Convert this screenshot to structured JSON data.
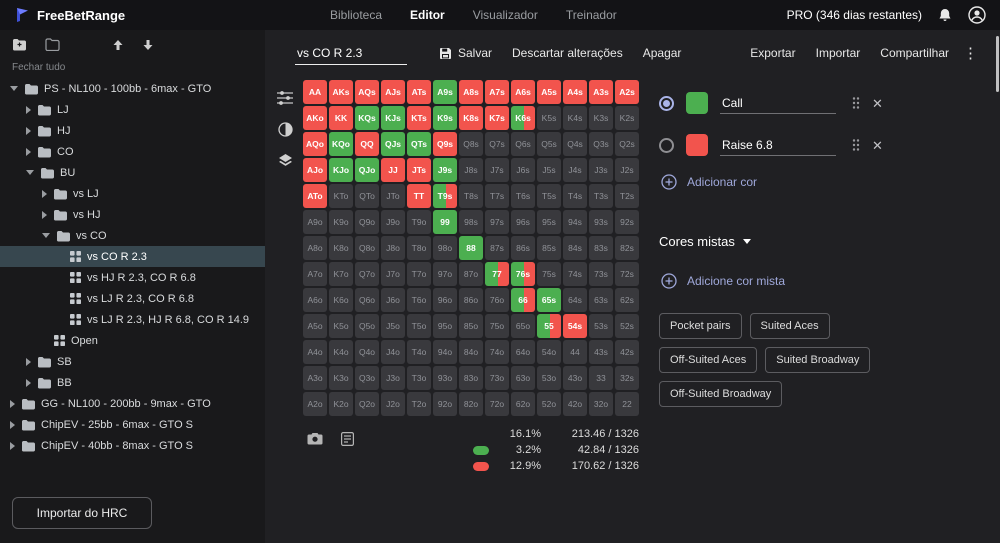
{
  "ui": {
    "accent": "#9fa8da"
  },
  "topbar": {
    "brand": "FreeBetRange",
    "nav": [
      {
        "label": "Biblioteca",
        "active": false
      },
      {
        "label": "Editor",
        "active": true
      },
      {
        "label": "Visualizador",
        "active": false
      },
      {
        "label": "Treinador",
        "active": false
      }
    ],
    "account_label": "PRO (346 dias restantes)"
  },
  "sidebar": {
    "close_all": "Fechar tudo",
    "import_button": "Importar do HRC",
    "tree": [
      {
        "label": "PS - NL100 - 100bb - 6max - GTO",
        "depth": 0,
        "type": "folder",
        "expanded": true
      },
      {
        "label": "LJ",
        "depth": 1,
        "type": "folder",
        "expanded": false
      },
      {
        "label": "HJ",
        "depth": 1,
        "type": "folder",
        "expanded": false
      },
      {
        "label": "CO",
        "depth": 1,
        "type": "folder",
        "expanded": false
      },
      {
        "label": "BU",
        "depth": 1,
        "type": "folder",
        "expanded": true
      },
      {
        "label": "vs LJ",
        "depth": 2,
        "type": "folder",
        "expanded": false
      },
      {
        "label": "vs HJ",
        "depth": 2,
        "type": "folder",
        "expanded": false
      },
      {
        "label": "vs CO",
        "depth": 2,
        "type": "folder",
        "expanded": true
      },
      {
        "label": "vs CO R 2.3",
        "depth": 3,
        "type": "range",
        "selected": true
      },
      {
        "label": "vs HJ R 2.3, CO R 6.8",
        "depth": 3,
        "type": "range"
      },
      {
        "label": "vs LJ R 2.3, CO R 6.8",
        "depth": 3,
        "type": "range"
      },
      {
        "label": "vs LJ R 2.3, HJ R 6.8, CO R 14.9",
        "depth": 3,
        "type": "range"
      },
      {
        "label": "Open",
        "depth": 2,
        "type": "range"
      },
      {
        "label": "SB",
        "depth": 1,
        "type": "folder",
        "expanded": false
      },
      {
        "label": "BB",
        "depth": 1,
        "type": "folder",
        "expanded": false
      },
      {
        "label": "GG - NL100 - 200bb - 9max - GTO",
        "depth": 0,
        "type": "folder",
        "expanded": false
      },
      {
        "label": "ChipEV - 25bb - 6max - GTO S",
        "depth": 0,
        "type": "folder",
        "expanded": false
      },
      {
        "label": "ChipEV - 40bb - 8max - GTO S",
        "depth": 0,
        "type": "folder",
        "expanded": false
      }
    ]
  },
  "editor": {
    "range_name": "vs CO R 2.3",
    "save_label": "Salvar",
    "discard_label": "Descartar alterações",
    "delete_label": "Apagar",
    "export_label": "Exportar",
    "import_label": "Importar",
    "share_label": "Compartilhar"
  },
  "grid": {
    "colors": {
      "raise": "#f2544d",
      "call": "#4caf50",
      "fold": "#39393d"
    },
    "states_legend": {
      "r": "raise",
      "c": "call",
      "m": "mixed",
      "f": "fold"
    },
    "cells": [
      [
        "AA",
        "r"
      ],
      [
        "AKs",
        "r"
      ],
      [
        "AQs",
        "r"
      ],
      [
        "AJs",
        "r"
      ],
      [
        "ATs",
        "r"
      ],
      [
        "A9s",
        "c"
      ],
      [
        "A8s",
        "r"
      ],
      [
        "A7s",
        "r"
      ],
      [
        "A6s",
        "r"
      ],
      [
        "A5s",
        "r"
      ],
      [
        "A4s",
        "r"
      ],
      [
        "A3s",
        "r"
      ],
      [
        "A2s",
        "r"
      ],
      [
        "AKo",
        "r"
      ],
      [
        "KK",
        "r"
      ],
      [
        "KQs",
        "c"
      ],
      [
        "KJs",
        "c"
      ],
      [
        "KTs",
        "r"
      ],
      [
        "K9s",
        "c"
      ],
      [
        "K8s",
        "r"
      ],
      [
        "K7s",
        "r"
      ],
      [
        "K6s",
        "m"
      ],
      [
        "K5s",
        "f"
      ],
      [
        "K4s",
        "f"
      ],
      [
        "K3s",
        "f"
      ],
      [
        "K2s",
        "f"
      ],
      [
        "AQo",
        "r"
      ],
      [
        "KQo",
        "c"
      ],
      [
        "QQ",
        "r"
      ],
      [
        "QJs",
        "c"
      ],
      [
        "QTs",
        "c"
      ],
      [
        "Q9s",
        "r"
      ],
      [
        "Q8s",
        "f"
      ],
      [
        "Q7s",
        "f"
      ],
      [
        "Q6s",
        "f"
      ],
      [
        "Q5s",
        "f"
      ],
      [
        "Q4s",
        "f"
      ],
      [
        "Q3s",
        "f"
      ],
      [
        "Q2s",
        "f"
      ],
      [
        "AJo",
        "r"
      ],
      [
        "KJo",
        "c"
      ],
      [
        "QJo",
        "c"
      ],
      [
        "JJ",
        "r"
      ],
      [
        "JTs",
        "r"
      ],
      [
        "J9s",
        "c"
      ],
      [
        "J8s",
        "f"
      ],
      [
        "J7s",
        "f"
      ],
      [
        "J6s",
        "f"
      ],
      [
        "J5s",
        "f"
      ],
      [
        "J4s",
        "f"
      ],
      [
        "J3s",
        "f"
      ],
      [
        "J2s",
        "f"
      ],
      [
        "ATo",
        "r"
      ],
      [
        "KTo",
        "f"
      ],
      [
        "QTo",
        "f"
      ],
      [
        "JTo",
        "f"
      ],
      [
        "TT",
        "r"
      ],
      [
        "T9s",
        "m"
      ],
      [
        "T8s",
        "f"
      ],
      [
        "T7s",
        "f"
      ],
      [
        "T6s",
        "f"
      ],
      [
        "T5s",
        "f"
      ],
      [
        "T4s",
        "f"
      ],
      [
        "T3s",
        "f"
      ],
      [
        "T2s",
        "f"
      ],
      [
        "A9o",
        "f"
      ],
      [
        "K9o",
        "f"
      ],
      [
        "Q9o",
        "f"
      ],
      [
        "J9o",
        "f"
      ],
      [
        "T9o",
        "f"
      ],
      [
        "99",
        "c"
      ],
      [
        "98s",
        "f"
      ],
      [
        "97s",
        "f"
      ],
      [
        "96s",
        "f"
      ],
      [
        "95s",
        "f"
      ],
      [
        "94s",
        "f"
      ],
      [
        "93s",
        "f"
      ],
      [
        "92s",
        "f"
      ],
      [
        "A8o",
        "f"
      ],
      [
        "K8o",
        "f"
      ],
      [
        "Q8o",
        "f"
      ],
      [
        "J8o",
        "f"
      ],
      [
        "T8o",
        "f"
      ],
      [
        "98o",
        "f"
      ],
      [
        "88",
        "c"
      ],
      [
        "87s",
        "f"
      ],
      [
        "86s",
        "f"
      ],
      [
        "85s",
        "f"
      ],
      [
        "84s",
        "f"
      ],
      [
        "83s",
        "f"
      ],
      [
        "82s",
        "f"
      ],
      [
        "A7o",
        "f"
      ],
      [
        "K7o",
        "f"
      ],
      [
        "Q7o",
        "f"
      ],
      [
        "J7o",
        "f"
      ],
      [
        "T7o",
        "f"
      ],
      [
        "97o",
        "f"
      ],
      [
        "87o",
        "f"
      ],
      [
        "77",
        "m"
      ],
      [
        "76s",
        "m"
      ],
      [
        "75s",
        "f"
      ],
      [
        "74s",
        "f"
      ],
      [
        "73s",
        "f"
      ],
      [
        "72s",
        "f"
      ],
      [
        "A6o",
        "f"
      ],
      [
        "K6o",
        "f"
      ],
      [
        "Q6o",
        "f"
      ],
      [
        "J6o",
        "f"
      ],
      [
        "T6o",
        "f"
      ],
      [
        "96o",
        "f"
      ],
      [
        "86o",
        "f"
      ],
      [
        "76o",
        "f"
      ],
      [
        "66",
        "m"
      ],
      [
        "65s",
        "c"
      ],
      [
        "64s",
        "f"
      ],
      [
        "63s",
        "f"
      ],
      [
        "62s",
        "f"
      ],
      [
        "A5o",
        "f"
      ],
      [
        "K5o",
        "f"
      ],
      [
        "Q5o",
        "f"
      ],
      [
        "J5o",
        "f"
      ],
      [
        "T5o",
        "f"
      ],
      [
        "95o",
        "f"
      ],
      [
        "85o",
        "f"
      ],
      [
        "75o",
        "f"
      ],
      [
        "65o",
        "f"
      ],
      [
        "55",
        "m"
      ],
      [
        "54s",
        "r"
      ],
      [
        "53s",
        "f"
      ],
      [
        "52s",
        "f"
      ],
      [
        "A4o",
        "f"
      ],
      [
        "K4o",
        "f"
      ],
      [
        "Q4o",
        "f"
      ],
      [
        "J4o",
        "f"
      ],
      [
        "T4o",
        "f"
      ],
      [
        "94o",
        "f"
      ],
      [
        "84o",
        "f"
      ],
      [
        "74o",
        "f"
      ],
      [
        "64o",
        "f"
      ],
      [
        "54o",
        "f"
      ],
      [
        "44",
        "f"
      ],
      [
        "43s",
        "f"
      ],
      [
        "42s",
        "f"
      ],
      [
        "A3o",
        "f"
      ],
      [
        "K3o",
        "f"
      ],
      [
        "Q3o",
        "f"
      ],
      [
        "J3o",
        "f"
      ],
      [
        "T3o",
        "f"
      ],
      [
        "93o",
        "f"
      ],
      [
        "83o",
        "f"
      ],
      [
        "73o",
        "f"
      ],
      [
        "63o",
        "f"
      ],
      [
        "53o",
        "f"
      ],
      [
        "43o",
        "f"
      ],
      [
        "33",
        "f"
      ],
      [
        "32s",
        "f"
      ],
      [
        "A2o",
        "f"
      ],
      [
        "K2o",
        "f"
      ],
      [
        "Q2o",
        "f"
      ],
      [
        "J2o",
        "f"
      ],
      [
        "T2o",
        "f"
      ],
      [
        "92o",
        "f"
      ],
      [
        "82o",
        "f"
      ],
      [
        "72o",
        "f"
      ],
      [
        "62o",
        "f"
      ],
      [
        "52o",
        "f"
      ],
      [
        "42o",
        "f"
      ],
      [
        "32o",
        "f"
      ],
      [
        "22",
        "f"
      ]
    ]
  },
  "stats": {
    "rows": [
      {
        "swatch": null,
        "pct": "16.1%",
        "combos": "213.46 / 1326"
      },
      {
        "swatch": "#4caf50",
        "pct": "3.2%",
        "combos": "42.84 / 1326"
      },
      {
        "swatch": "#f2544d",
        "pct": "12.9%",
        "combos": "170.62 / 1326"
      }
    ]
  },
  "colors_panel": {
    "rows": [
      {
        "selected": true,
        "color": "#4caf50",
        "name": "Call"
      },
      {
        "selected": false,
        "color": "#f2544d",
        "name": "Raise 6.8"
      }
    ],
    "add_color_label": "Adicionar cor",
    "mixed_header": "Cores mistas",
    "add_mixed_label": "Adicione cor mista",
    "presets": [
      "Pocket pairs",
      "Suited Aces",
      "Off-Suited Aces",
      "Suited Broadway",
      "Off-Suited Broadway"
    ]
  }
}
